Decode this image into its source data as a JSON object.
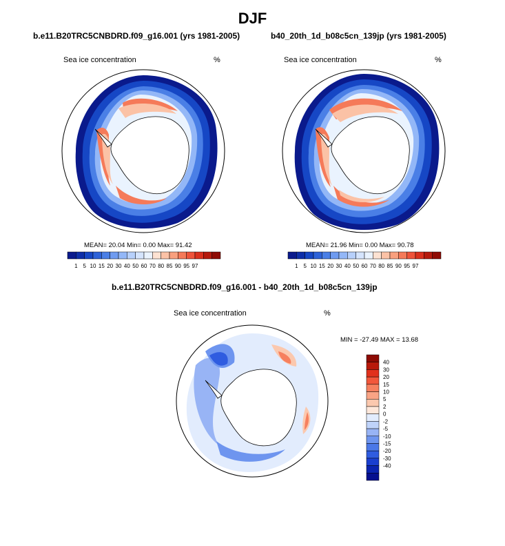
{
  "season_title": "DJF",
  "colors": {
    "abs_scale": [
      "#0a1a8c",
      "#0d2ea8",
      "#1647c5",
      "#2d62d8",
      "#4a7fe6",
      "#6f9bf0",
      "#93b7f7",
      "#b7d0fb",
      "#d5e4fd",
      "#eaf3fe",
      "#fde2d2",
      "#fbc2a6",
      "#f9a07e",
      "#f57a59",
      "#ee533a",
      "#d9301d",
      "#b51a0d",
      "#8f0b04"
    ],
    "diff_scale": [
      "#06108f",
      "#0b24b0",
      "#1a3fd0",
      "#2f5ce0",
      "#4b78e8",
      "#6e95ef",
      "#98b4f5",
      "#bfd3fa",
      "#e2ecfd",
      "#fde7da",
      "#fbc8ae",
      "#f9a485",
      "#f6805f",
      "#f2573b",
      "#e1311c",
      "#b8190b",
      "#8d0b04"
    ]
  },
  "panels": [
    {
      "case_title": "b.e11.B20TRC5CNBDRD.f09_g16.001 (yrs 1981-2005)",
      "variable": "Sea ice concentration",
      "units": "%",
      "stats": "MEAN=  20.04  Min=   0.00  Max=  91.42",
      "colorbar_labels": [
        "1",
        "5",
        "10",
        "15",
        "20",
        "30",
        "40",
        "50",
        "60",
        "70",
        "80",
        "85",
        "90",
        "95",
        "97"
      ]
    },
    {
      "case_title": "b40_20th_1d_b08c5cn_139jp (yrs 1981-2005)",
      "variable": "Sea ice concentration",
      "units": "%",
      "stats": "MEAN=  21.96  Min=   0.00  Max=  90.78",
      "colorbar_labels": [
        "1",
        "5",
        "10",
        "15",
        "20",
        "30",
        "40",
        "50",
        "60",
        "70",
        "80",
        "85",
        "90",
        "95",
        "97"
      ]
    }
  ],
  "difference": {
    "case_title": "b.e11.B20TRC5CNBDRD.f09_g16.001 - b40_20th_1d_b08c5cn_139jp",
    "variable": "Sea ice concentration",
    "units": "%",
    "stats": "MIN = -27.49 MAX =  13.68",
    "colorbar_labels": [
      "40",
      "30",
      "20",
      "15",
      "10",
      "5",
      "2",
      "0",
      "-2",
      "-5",
      "-10",
      "-15",
      "-20",
      "-30",
      "-40"
    ]
  }
}
